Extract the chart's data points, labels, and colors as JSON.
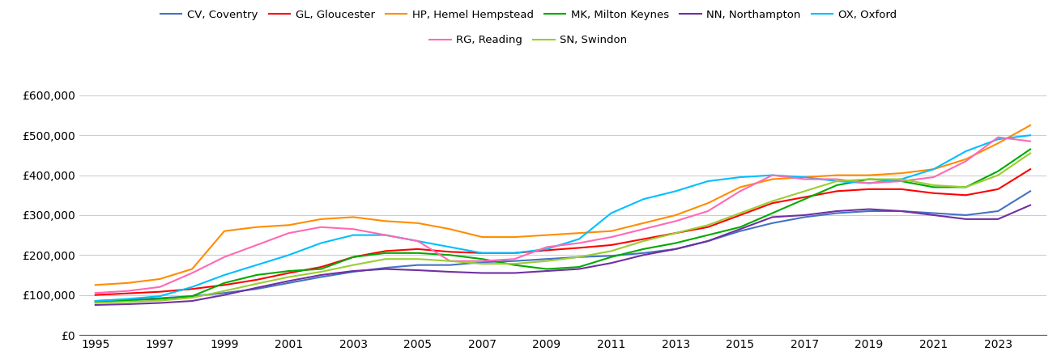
{
  "title": "",
  "series": {
    "CV, Coventry": {
      "color": "#4472C4",
      "values": [
        85000,
        88000,
        92000,
        97000,
        105000,
        115000,
        130000,
        145000,
        158000,
        168000,
        175000,
        175000,
        182000,
        185000,
        190000,
        195000,
        198000,
        205000,
        215000,
        235000,
        260000,
        280000,
        295000,
        305000,
        310000,
        310000,
        305000,
        300000,
        310000,
        360000
      ]
    },
    "GL, Gloucester": {
      "color": "#FF0000",
      "values": [
        100000,
        104000,
        108000,
        115000,
        125000,
        138000,
        155000,
        170000,
        195000,
        210000,
        215000,
        208000,
        205000,
        205000,
        212000,
        218000,
        225000,
        240000,
        255000,
        270000,
        300000,
        330000,
        345000,
        360000,
        365000,
        365000,
        355000,
        350000,
        365000,
        415000
      ]
    },
    "HP, Hemel Hempstead": {
      "color": "#FF8C00",
      "values": [
        125000,
        130000,
        140000,
        165000,
        260000,
        270000,
        275000,
        290000,
        295000,
        285000,
        280000,
        265000,
        245000,
        245000,
        250000,
        255000,
        260000,
        280000,
        300000,
        330000,
        370000,
        390000,
        395000,
        400000,
        400000,
        405000,
        415000,
        440000,
        480000,
        525000
      ]
    },
    "MK, Milton Keynes": {
      "color": "#00AA00",
      "values": [
        83000,
        86000,
        90000,
        97000,
        130000,
        150000,
        160000,
        165000,
        195000,
        205000,
        205000,
        200000,
        190000,
        175000,
        165000,
        170000,
        195000,
        215000,
        230000,
        250000,
        270000,
        305000,
        340000,
        375000,
        390000,
        385000,
        370000,
        370000,
        410000,
        465000
      ]
    },
    "NN, Northampton": {
      "color": "#7030A0",
      "values": [
        75000,
        77000,
        80000,
        85000,
        100000,
        118000,
        135000,
        150000,
        160000,
        165000,
        162000,
        158000,
        155000,
        155000,
        160000,
        165000,
        180000,
        200000,
        215000,
        235000,
        265000,
        295000,
        300000,
        310000,
        315000,
        310000,
        300000,
        290000,
        290000,
        325000
      ]
    },
    "OX, Oxford": {
      "color": "#00BFFF",
      "values": [
        85000,
        90000,
        97000,
        120000,
        150000,
        175000,
        200000,
        230000,
        250000,
        250000,
        235000,
        220000,
        205000,
        205000,
        215000,
        240000,
        305000,
        340000,
        360000,
        385000,
        395000,
        400000,
        395000,
        385000,
        380000,
        390000,
        415000,
        460000,
        490000,
        500000
      ]
    },
    "RG, Reading": {
      "color": "#FF69B4",
      "values": [
        105000,
        110000,
        120000,
        155000,
        195000,
        225000,
        255000,
        270000,
        265000,
        250000,
        235000,
        185000,
        185000,
        190000,
        220000,
        230000,
        245000,
        265000,
        285000,
        310000,
        360000,
        400000,
        390000,
        390000,
        380000,
        385000,
        395000,
        435000,
        495000,
        485000
      ]
    },
    "SN, Swindon": {
      "color": "#9ACD32",
      "values": [
        80000,
        83000,
        86000,
        93000,
        110000,
        128000,
        145000,
        158000,
        175000,
        190000,
        190000,
        185000,
        178000,
        178000,
        185000,
        195000,
        210000,
        235000,
        255000,
        275000,
        305000,
        335000,
        360000,
        385000,
        390000,
        390000,
        375000,
        370000,
        400000,
        455000
      ]
    }
  },
  "years": [
    1995,
    1996,
    1997,
    1998,
    1999,
    2000,
    2001,
    2002,
    2003,
    2004,
    2005,
    2006,
    2007,
    2008,
    2009,
    2010,
    2011,
    2012,
    2013,
    2014,
    2015,
    2016,
    2017,
    2018,
    2019,
    2020,
    2021,
    2022,
    2023,
    2024
  ],
  "ylim": [
    0,
    620000
  ],
  "yticks": [
    0,
    100000,
    200000,
    300000,
    400000,
    500000,
    600000
  ],
  "background_color": "#ffffff",
  "grid_color": "#cccccc",
  "legend_order": [
    "CV, Coventry",
    "GL, Gloucester",
    "HP, Hemel Hempstead",
    "MK, Milton Keynes",
    "NN, Northampton",
    "OX, Oxford",
    "RG, Reading",
    "SN, Swindon"
  ],
  "legend_row1": [
    "CV, Coventry",
    "GL, Gloucester",
    "HP, Hemel Hempstead",
    "MK, Milton Keynes",
    "NN, Northampton",
    "OX, Oxford"
  ],
  "legend_row2": [
    "RG, Reading",
    "SN, Swindon"
  ]
}
